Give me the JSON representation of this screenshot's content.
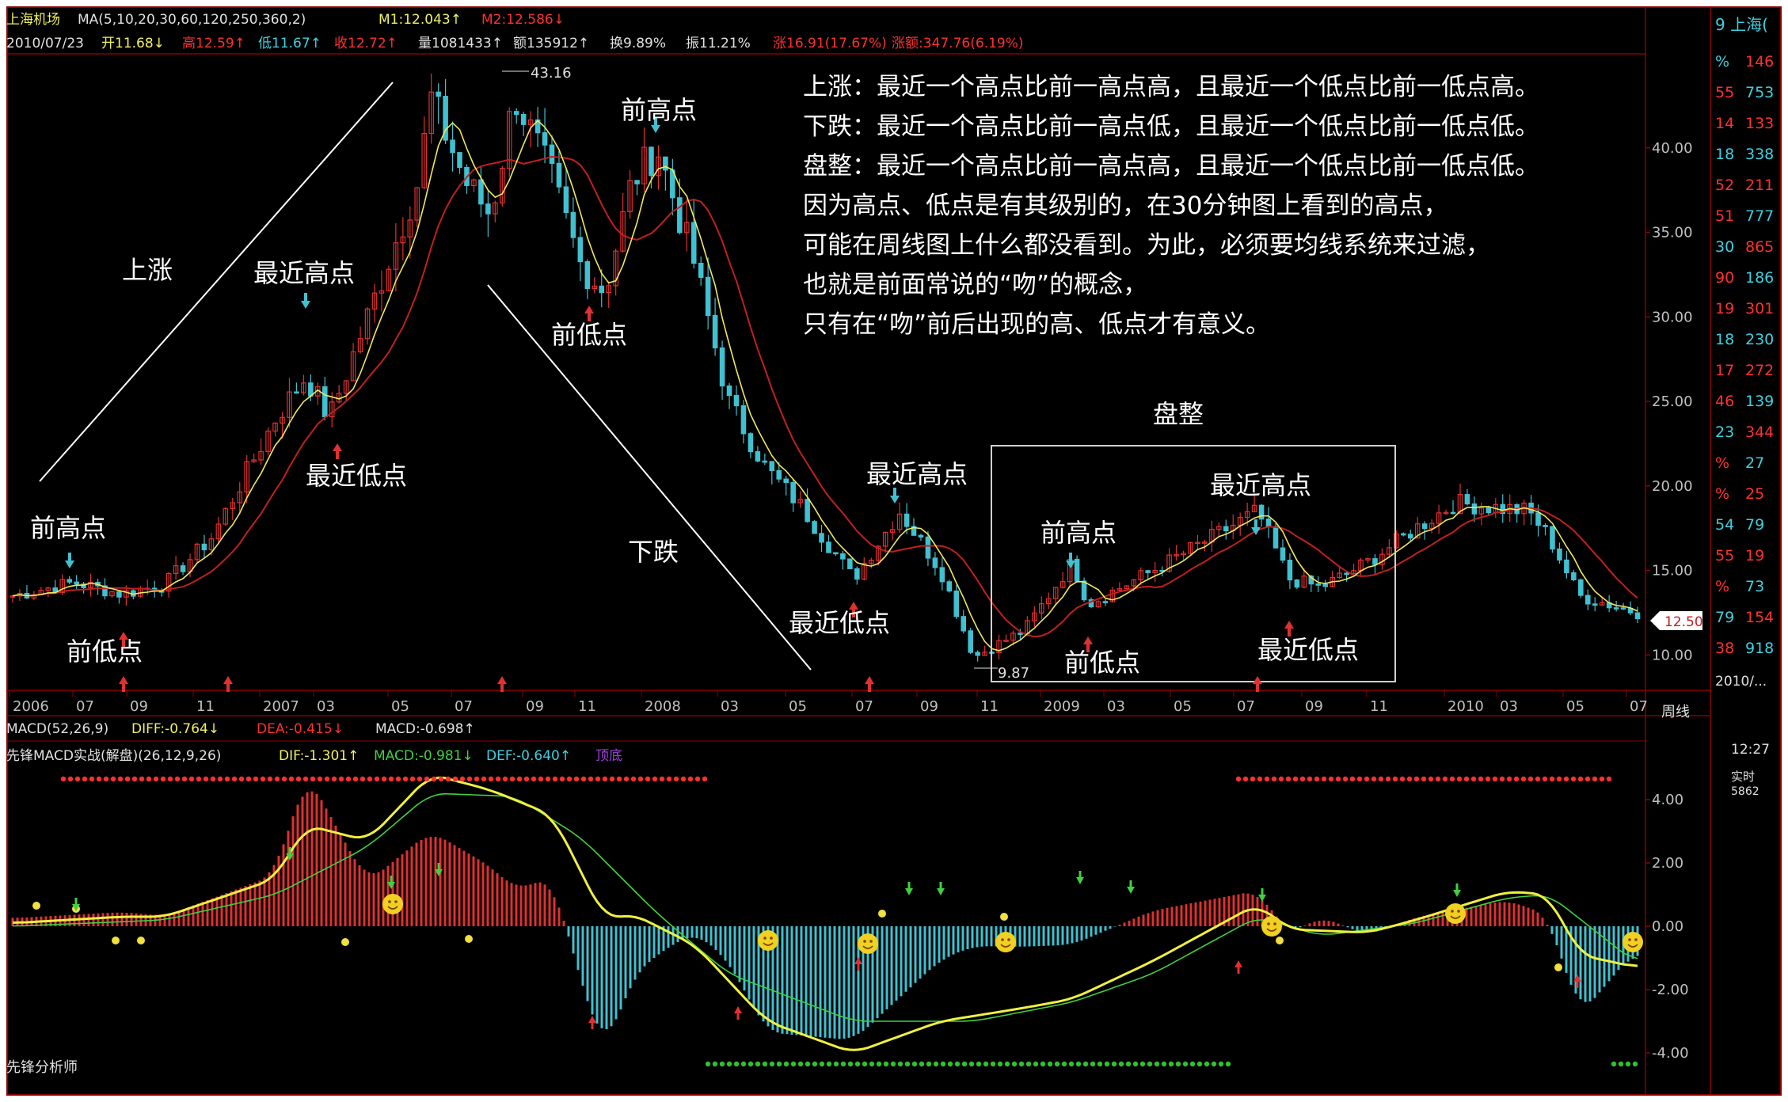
{
  "colors": {
    "background": "#000000",
    "frame": "#8b0000",
    "up": "#e03030",
    "down": "#40c0d0",
    "ma_fast": "#f0e860",
    "ma_slow": "#c02020",
    "text": "#ffffff",
    "info_red": "#ff3030",
    "info_cyan": "#40d0e0",
    "info_yellow": "#f0f060",
    "macd_yellow": "#f0f040",
    "macd_green": "#40d040"
  },
  "header": {
    "line1": {
      "name": "上海机场",
      "ma_params": "MA(5,10,20,30,60,120,250,360,2)",
      "m1": "M1:12.043↑",
      "m2": "M2:12.586↓"
    },
    "line2": {
      "date": "2010/07/23",
      "open": "开11.68↓",
      "high": "高12.59↑",
      "low": "低11.67↑",
      "close": "收12.72↑",
      "volume": "量1081433↑",
      "amount": "额135912↑",
      "turnover": "换9.89%",
      "amplitude": "振11.21%",
      "change": "涨16.91(17.67%)",
      "change2": "涨额:347.76(6.19%)"
    }
  },
  "chart_data": [
    {
      "type": "candlestick",
      "title": "上海机场 周线",
      "period_label": "周线",
      "x_tick_labels": [
        "2006",
        "07",
        "09",
        "11",
        "2007",
        "03",
        "05",
        "07",
        "09",
        "11",
        "2008",
        "03",
        "05",
        "07",
        "09",
        "11",
        "2009",
        "03",
        "05",
        "07",
        "09",
        "11",
        "2010",
        "03",
        "05",
        "07"
      ],
      "y_ticks": [
        10.0,
        15.0,
        20.0,
        25.0,
        30.0,
        35.0,
        40.0
      ],
      "y_tick_labels": [
        "10.00",
        "15.00",
        "20.00",
        "25.00",
        "30.00",
        "35.00",
        "40.00"
      ],
      "ylim": [
        8,
        45
      ],
      "price_path": [
        [
          "2006-05",
          13.5
        ],
        [
          "2006-07",
          14.3
        ],
        [
          "2006-09",
          13.6
        ],
        [
          "2006-11",
          14.2
        ],
        [
          "2007-01",
          17.0
        ],
        [
          "2007-03",
          24.0
        ],
        [
          "2007-04",
          26.5
        ],
        [
          "2007-04b",
          24.0
        ],
        [
          "2007-05",
          30.0
        ],
        [
          "2007-06",
          38.0
        ],
        [
          "2007-07",
          43.0
        ],
        [
          "2007-08",
          38.0
        ],
        [
          "2007-09",
          36.0
        ],
        [
          "2007-10",
          43.16
        ],
        [
          "2007-11",
          38.0
        ],
        [
          "2007-12",
          33.0
        ],
        [
          "2008-01",
          31.5
        ],
        [
          "2008-02",
          38.0
        ],
        [
          "2008-03",
          40.0
        ],
        [
          "2008-04",
          33.0
        ],
        [
          "2008-05",
          25.0
        ],
        [
          "2008-06",
          21.0
        ],
        [
          "2008-07",
          19.0
        ],
        [
          "2008-08",
          14.5
        ],
        [
          "2008-09",
          18.5
        ],
        [
          "2008-10",
          15.0
        ],
        [
          "2008-11",
          9.87
        ],
        [
          "2009-01",
          11.5
        ],
        [
          "2009-02",
          15.5
        ],
        [
          "2009-03",
          13.0
        ],
        [
          "2009-05",
          15.0
        ],
        [
          "2009-07",
          17.0
        ],
        [
          "2009-08",
          18.5
        ],
        [
          "2009-09",
          14.5
        ],
        [
          "2009-10",
          14.0
        ],
        [
          "2009-11",
          15.5
        ],
        [
          "2010-01",
          17.5
        ],
        [
          "2010-02",
          19.0
        ],
        [
          "2010-04",
          18.5
        ],
        [
          "2010-05",
          17.0
        ],
        [
          "2010-06",
          13.5
        ],
        [
          "2010-07",
          12.5
        ]
      ],
      "high_marker": "43.16",
      "low_marker": "9.87",
      "price_tag": "12.50",
      "annotations": {
        "rise": "上涨",
        "fall": "下跌",
        "consolidation": "盘整",
        "prev_high": "前高点",
        "prev_low": "前低点",
        "recent_high": "最近高点",
        "recent_low": "最近低点"
      },
      "explanation": [
        "上涨：最近一个高点比前一高点高，且最近一个低点比前一低点高。",
        "下跌：最近一个高点比前一高点低，且最近一个低点比前一低点低。",
        "盘整：最近一个高点比前一高点高，且最近一个低点比前一低点低。",
        "因为高点、低点是有其级别的，在30分钟图上看到的高点，",
        "可能在周线图上什么都没看到。为此，必须要均线系统来过滤，",
        "也就是前面常说的“吻”的概念，",
        "只有在“吻”前后出现的高、低点才有意义。"
      ]
    },
    {
      "type": "bar",
      "title": "MACD",
      "y_ticks": [
        -4.0,
        -2.0,
        0.0,
        2.0,
        4.0
      ],
      "y_tick_labels": [
        "-4.00",
        "-2.00",
        "0.00",
        "2.00",
        "4.00"
      ],
      "ylim": [
        -4.5,
        5.0
      ],
      "diff_path": [
        [
          "2006-05",
          0.1
        ],
        [
          "2006-09",
          0.3
        ],
        [
          "2006-11",
          0.3
        ],
        [
          "2007-03",
          1.5
        ],
        [
          "2007-04",
          3.2
        ],
        [
          "2007-05",
          2.7
        ],
        [
          "2007-07",
          4.8
        ],
        [
          "2007-09",
          4.3
        ],
        [
          "2007-11",
          3.5
        ],
        [
          "2008-01",
          0.2
        ],
        [
          "2008-02",
          0.4
        ],
        [
          "2008-04",
          -0.6
        ],
        [
          "2008-06",
          -3.0
        ],
        [
          "2008-08",
          -4.0
        ],
        [
          "2008-10",
          -3.0
        ],
        [
          "2008-12",
          -2.6
        ],
        [
          "2009-02",
          -2.3
        ],
        [
          "2009-05",
          -1.1
        ],
        [
          "2009-08",
          0.7
        ],
        [
          "2009-09",
          -0.1
        ],
        [
          "2009-11",
          -0.2
        ],
        [
          "2010-01",
          0.2
        ],
        [
          "2010-03",
          1.1
        ],
        [
          "2010-05",
          1.0
        ],
        [
          "2010-06",
          -0.9
        ],
        [
          "2010-07",
          -1.3
        ]
      ],
      "dea_path": [
        [
          "2006-05",
          0.0
        ],
        [
          "2006-11",
          0.2
        ],
        [
          "2007-03",
          1.0
        ],
        [
          "2007-05",
          2.5
        ],
        [
          "2007-07",
          4.2
        ],
        [
          "2007-10",
          4.1
        ],
        [
          "2007-12",
          2.8
        ],
        [
          "2008-03",
          0.4
        ],
        [
          "2008-05",
          -1.5
        ],
        [
          "2008-08",
          -3.0
        ],
        [
          "2008-11",
          -3.0
        ],
        [
          "2009-02",
          -2.4
        ],
        [
          "2009-05",
          -1.5
        ],
        [
          "2009-08",
          0.3
        ],
        [
          "2009-10",
          -0.3
        ],
        [
          "2010-01",
          0.1
        ],
        [
          "2010-03",
          0.9
        ],
        [
          "2010-05",
          1.0
        ],
        [
          "2010-07",
          -1.2
        ]
      ],
      "line1": {
        "macd": "MACD(52,26,9)",
        "diff": "DIFF:-0.764↓",
        "dea": "DEA:-0.415↓",
        "macd_v": "MACD:-0.698↑"
      },
      "line2": {
        "name": "先锋MACD实战(解盘)(26,12,9,26)",
        "dif": "DIF:-1.301↑",
        "macd_v": "MACD:-0.981↓",
        "def": "DEF:-0.640↑",
        "extra": "顶底"
      }
    }
  ],
  "footer": {
    "brand": "先锋分析师"
  },
  "right_panel": {
    "title": "9 上海(",
    "pct": "%",
    "rows": [
      [
        "%",
        "146"
      ],
      [
        "55",
        "753"
      ],
      [
        "14",
        "133"
      ],
      [
        "18",
        "338"
      ],
      [
        "52",
        "211"
      ],
      [
        "51",
        "777"
      ],
      [
        "30",
        "865"
      ],
      [
        "90",
        "186"
      ],
      [
        "19",
        "301"
      ],
      [
        "18",
        "230"
      ],
      [
        "17",
        "272"
      ],
      [
        "46",
        "139"
      ],
      [
        "23",
        "344"
      ],
      [
        "%",
        "27"
      ],
      [
        "%",
        "25"
      ],
      [
        "54",
        "79"
      ],
      [
        "55",
        "19"
      ],
      [
        "%",
        "73"
      ],
      [
        "79",
        "154"
      ],
      [
        "38",
        "918"
      ]
    ],
    "date": "2010/...",
    "time": "12:27",
    "time_label": "实时",
    "time_val": "5862"
  }
}
